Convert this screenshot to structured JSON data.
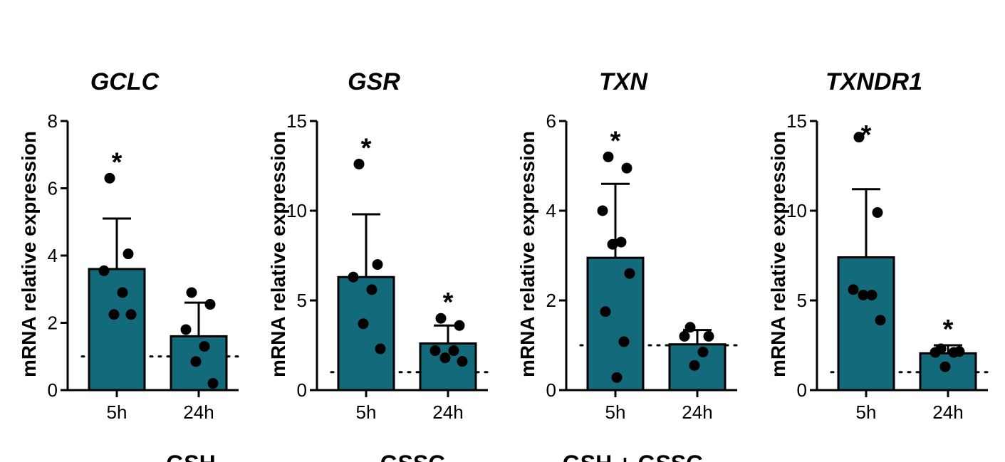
{
  "chart_data": [
    {
      "type": "bar",
      "title": "GCLC",
      "ylabel": "mRNA relative expression",
      "categories": [
        "5h",
        "24h"
      ],
      "ylim": [
        0,
        8
      ],
      "yticks": [
        0,
        2,
        4,
        6,
        8
      ],
      "bar_color": "#136A7A",
      "reference_line": 1,
      "series": [
        {
          "name": "5h",
          "mean": 3.6,
          "sd": 1.5,
          "points": [
            6.3,
            4.05,
            3.55,
            2.9,
            2.25,
            2.25
          ],
          "significance": "*"
        },
        {
          "name": "24h",
          "mean": 1.6,
          "sd": 1.0,
          "points": [
            2.9,
            2.55,
            1.8,
            1.3,
            0.85,
            0.2
          ],
          "significance": ""
        }
      ]
    },
    {
      "type": "bar",
      "title": "GSR",
      "ylabel": "mRNA relative expression",
      "categories": [
        "5h",
        "24h"
      ],
      "ylim": [
        0,
        15
      ],
      "yticks": [
        0,
        5,
        10,
        15
      ],
      "bar_color": "#136A7A",
      "reference_line": 1,
      "series": [
        {
          "name": "5h",
          "mean": 6.3,
          "sd": 3.5,
          "points": [
            12.6,
            7.0,
            6.3,
            5.6,
            3.7,
            2.3
          ],
          "significance": "*"
        },
        {
          "name": "24h",
          "mean": 2.6,
          "sd": 1.0,
          "points": [
            4.0,
            3.6,
            2.2,
            2.2,
            1.8,
            1.6
          ],
          "significance": "*"
        }
      ]
    },
    {
      "type": "bar",
      "title": "TXN",
      "ylabel": "mRNA relative expression",
      "categories": [
        "5h",
        "24h"
      ],
      "ylim": [
        0,
        6
      ],
      "yticks": [
        0,
        2,
        4,
        6
      ],
      "bar_color": "#136A7A",
      "reference_line": 1,
      "series": [
        {
          "name": "5h",
          "mean": 2.95,
          "sd": 1.65,
          "points": [
            5.2,
            4.95,
            4.0,
            3.3,
            3.25,
            2.6,
            1.75,
            1.08,
            0.28
          ],
          "significance": "*"
        },
        {
          "name": "24h",
          "mean": 1.02,
          "sd": 0.32,
          "points": [
            1.4,
            1.2,
            1.2,
            0.85,
            0.55
          ],
          "significance": ""
        }
      ]
    },
    {
      "type": "bar",
      "title": "TXNDR1",
      "ylabel": "mRNA relative expression",
      "categories": [
        "5h",
        "24h"
      ],
      "ylim": [
        0,
        15
      ],
      "yticks": [
        0,
        5,
        10,
        15
      ],
      "bar_color": "#136A7A",
      "reference_line": 1,
      "series": [
        {
          "name": "5h",
          "mean": 7.4,
          "sd": 3.8,
          "points": [
            14.1,
            9.9,
            5.6,
            5.3,
            5.3,
            3.9
          ],
          "significance": "*"
        },
        {
          "name": "24h",
          "mean": 2.05,
          "sd": 0.45,
          "points": [
            2.3,
            2.15,
            2.1,
            2.1,
            1.3
          ],
          "significance": "*"
        }
      ]
    }
  ],
  "bottom_titles": [
    "GSH",
    "GSSG",
    "GSH + GSSG"
  ]
}
